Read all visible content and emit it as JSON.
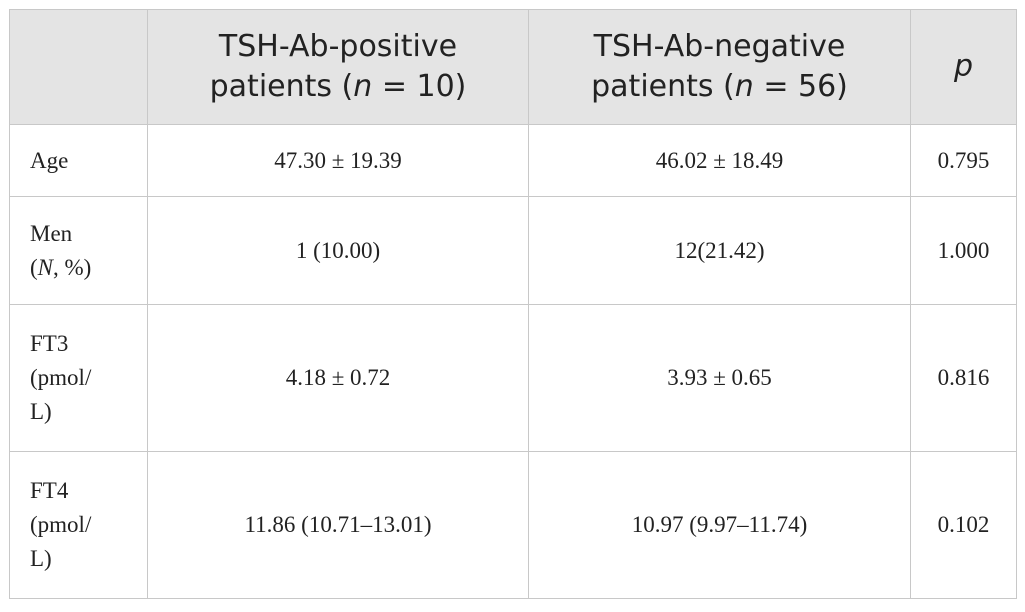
{
  "table": {
    "header": {
      "col1_line1": "TSH-Ab-positive",
      "col1_line2_prefix": "patients (",
      "col1_n": "n",
      "col1_line2_suffix": " = 10)",
      "col2_line1": "TSH-Ab-negative",
      "col2_line2_prefix": "patients (",
      "col2_n": "n",
      "col2_line2_suffix": " = 56)",
      "col3": "p"
    },
    "rows": [
      {
        "label_lines": [
          "Age"
        ],
        "positive": "47.30 ± 19.39",
        "negative": "46.02 ± 18.49",
        "p": "0.795"
      },
      {
        "label_line1": "Men",
        "label_line2_open": "(",
        "label_line2_italic": "N",
        "label_line2_rest": ", %)",
        "positive": "1 (10.00)",
        "negative": "12(21.42)",
        "p": "1.000"
      },
      {
        "label_lines": [
          "FT3",
          "(pmol/",
          "L)"
        ],
        "positive": "4.18 ± 0.72",
        "negative": "3.93 ± 0.65",
        "p": "0.816"
      },
      {
        "label_lines": [
          "FT4",
          "(pmol/",
          "L)"
        ],
        "positive": "11.86 (10.71–13.01)",
        "negative": "10.97 (9.97–11.74)",
        "p": "0.102"
      }
    ]
  }
}
